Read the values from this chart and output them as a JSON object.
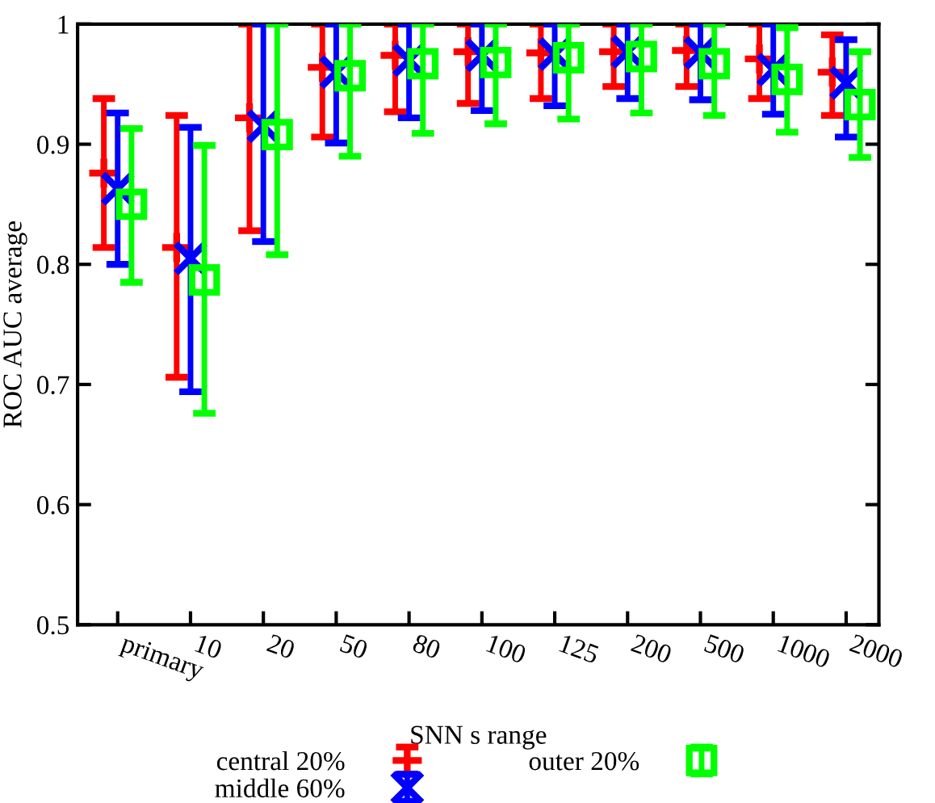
{
  "chart_data": {
    "type": "scatter",
    "xlabel": "SNN s range",
    "ylabel": "ROC AUC average",
    "categories": [
      "primary",
      "10",
      "20",
      "50",
      "80",
      "100",
      "125",
      "200",
      "500",
      "1000",
      "2000"
    ],
    "ylim": [
      0.5,
      1
    ],
    "yticks": [
      0.5,
      0.6,
      0.7,
      0.8,
      0.9,
      1
    ],
    "grid": false,
    "legend": "bottom",
    "series": [
      {
        "name": "central 20%",
        "color": "#ff0000",
        "marker": "plus",
        "values": [
          0.876,
          0.814,
          0.922,
          0.964,
          0.974,
          0.977,
          0.976,
          0.977,
          0.978,
          0.971,
          0.96
        ],
        "errors": [
          [
            0.814,
            0.938
          ],
          [
            0.706,
            0.924
          ],
          [
            0.828,
            1
          ],
          [
            0.906,
            1
          ],
          [
            0.927,
            1
          ],
          [
            0.934,
            1
          ],
          [
            0.938,
            1
          ],
          [
            0.948,
            1
          ],
          [
            0.948,
            1
          ],
          [
            0.938,
            1
          ],
          [
            0.924,
            0.991
          ]
        ]
      },
      {
        "name": "middle 60%",
        "color": "#0000ff",
        "marker": "cross",
        "values": [
          0.863,
          0.805,
          0.915,
          0.96,
          0.97,
          0.974,
          0.975,
          0.977,
          0.976,
          0.962,
          0.951
        ],
        "errors": [
          [
            0.8,
            0.926
          ],
          [
            0.694,
            0.914
          ],
          [
            0.819,
            1
          ],
          [
            0.901,
            1
          ],
          [
            0.922,
            1
          ],
          [
            0.928,
            1
          ],
          [
            0.932,
            1
          ],
          [
            0.938,
            1
          ],
          [
            0.937,
            1
          ],
          [
            0.925,
            1
          ],
          [
            0.906,
            0.987
          ]
        ]
      },
      {
        "name": "outer 20%",
        "color": "#00ff00",
        "marker": "square",
        "values": [
          0.85,
          0.787,
          0.908,
          0.957,
          0.967,
          0.968,
          0.972,
          0.973,
          0.967,
          0.954,
          0.933
        ],
        "errors": [
          [
            0.785,
            0.913
          ],
          [
            0.676,
            0.899
          ],
          [
            0.808,
            1
          ],
          [
            0.89,
            1
          ],
          [
            0.909,
            1
          ],
          [
            0.917,
            1
          ],
          [
            0.921,
            1
          ],
          [
            0.926,
            1
          ],
          [
            0.924,
            1
          ],
          [
            0.91,
            0.997
          ],
          [
            0.889,
            0.977
          ]
        ]
      }
    ]
  }
}
